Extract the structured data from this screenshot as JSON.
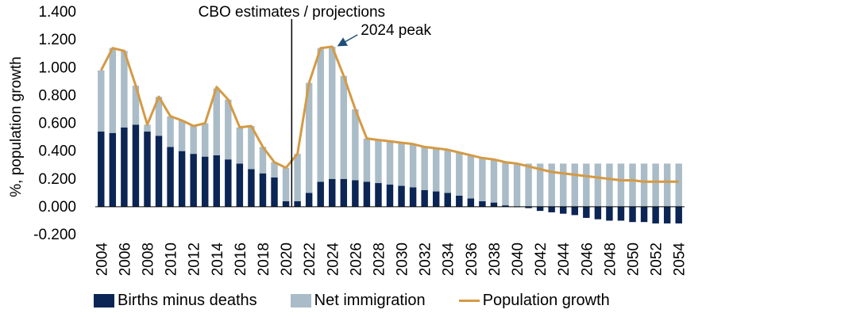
{
  "chart_data": {
    "type": "bar",
    "stacked": true,
    "categories": [
      "2004",
      "2005",
      "2006",
      "2007",
      "2008",
      "2009",
      "2010",
      "2011",
      "2012",
      "2013",
      "2014",
      "2015",
      "2016",
      "2017",
      "2018",
      "2019",
      "2020",
      "2021",
      "2022",
      "2023",
      "2024",
      "2025",
      "2026",
      "2027",
      "2028",
      "2029",
      "2030",
      "2031",
      "2032",
      "2033",
      "2034",
      "2035",
      "2036",
      "2037",
      "2038",
      "2039",
      "2040",
      "2041",
      "2042",
      "2043",
      "2044",
      "2045",
      "2046",
      "2047",
      "2048",
      "2049",
      "2050",
      "2051",
      "2052",
      "2053",
      "2054"
    ],
    "x_tick_labels": [
      "2004",
      "2006",
      "2008",
      "2010",
      "2012",
      "2014",
      "2016",
      "2018",
      "2020",
      "2022",
      "2024",
      "2026",
      "2028",
      "2030",
      "2032",
      "2034",
      "2036",
      "2038",
      "2040",
      "2042",
      "2044",
      "2046",
      "2048",
      "2050",
      "2052",
      "2054"
    ],
    "series": [
      {
        "name": "Births minus deaths",
        "kind": "bar",
        "color": "#0b2554",
        "values": [
          0.54,
          0.53,
          0.57,
          0.59,
          0.54,
          0.51,
          0.43,
          0.4,
          0.38,
          0.36,
          0.37,
          0.34,
          0.31,
          0.27,
          0.24,
          0.21,
          0.04,
          0.04,
          0.1,
          0.18,
          0.2,
          0.2,
          0.19,
          0.18,
          0.17,
          0.16,
          0.15,
          0.14,
          0.12,
          0.11,
          0.1,
          0.08,
          0.06,
          0.04,
          0.03,
          0.01,
          0.0,
          -0.01,
          -0.03,
          -0.04,
          -0.05,
          -0.06,
          -0.08,
          -0.09,
          -0.1,
          -0.1,
          -0.11,
          -0.11,
          -0.12,
          -0.12,
          -0.12
        ]
      },
      {
        "name": "Net immigration",
        "kind": "bar",
        "color": "#a9bcc7",
        "values": [
          0.44,
          0.61,
          0.55,
          0.28,
          0.05,
          0.28,
          0.22,
          0.22,
          0.2,
          0.24,
          0.48,
          0.43,
          0.26,
          0.31,
          0.19,
          0.11,
          0.24,
          0.34,
          0.79,
          0.96,
          0.95,
          0.74,
          0.51,
          0.31,
          0.31,
          0.31,
          0.31,
          0.31,
          0.31,
          0.31,
          0.31,
          0.31,
          0.31,
          0.31,
          0.31,
          0.31,
          0.31,
          0.31,
          0.31,
          0.31,
          0.31,
          0.31,
          0.31,
          0.31,
          0.31,
          0.31,
          0.31,
          0.31,
          0.31,
          0.31,
          0.31
        ]
      },
      {
        "name": "Population growth",
        "kind": "line",
        "color": "#d49a45",
        "values": [
          0.98,
          1.14,
          1.12,
          0.87,
          0.59,
          0.79,
          0.65,
          0.62,
          0.58,
          0.6,
          0.86,
          0.77,
          0.57,
          0.58,
          0.43,
          0.32,
          0.28,
          0.38,
          0.89,
          1.14,
          1.15,
          0.94,
          0.7,
          0.49,
          0.48,
          0.47,
          0.46,
          0.45,
          0.43,
          0.42,
          0.41,
          0.39,
          0.37,
          0.35,
          0.34,
          0.32,
          0.31,
          0.29,
          0.27,
          0.25,
          0.24,
          0.23,
          0.22,
          0.21,
          0.2,
          0.19,
          0.19,
          0.18,
          0.18,
          0.18,
          0.18
        ]
      }
    ],
    "title": "",
    "xlabel": "",
    "ylabel": "%, population growth",
    "ylim": [
      -0.2,
      1.4
    ],
    "yticks": [
      -0.2,
      0.0,
      0.2,
      0.4,
      0.6,
      0.8,
      1.0,
      1.2,
      1.4
    ],
    "ytick_labels": [
      "-0.200",
      "0.000",
      "0.200",
      "0.400",
      "0.600",
      "0.800",
      "1.000",
      "1.200",
      "1.400"
    ],
    "annotations": [
      {
        "text": "CBO estimates / projections",
        "type": "vertical-line",
        "x": 2020.5
      },
      {
        "text": "2024 peak",
        "type": "arrow",
        "target_x": "2024",
        "target_y": 1.15
      }
    ],
    "legend": {
      "position": "bottom",
      "entries": [
        "Births minus deaths",
        "Net immigration",
        "Population growth"
      ]
    }
  }
}
